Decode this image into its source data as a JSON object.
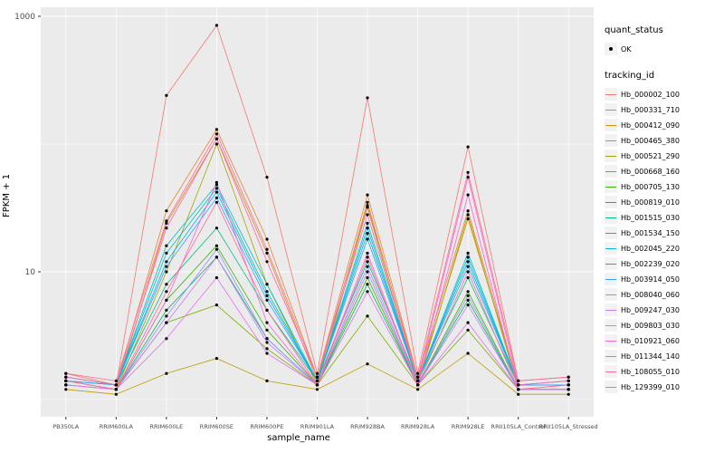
{
  "chart_data": {
    "type": "line",
    "title": "",
    "xlabel": "sample_name",
    "ylabel": "FPKM + 1",
    "y_scale": "log10",
    "ylim": [
      1,
      1000
    ],
    "y_ticks": [
      10,
      1000
    ],
    "y_minor_ticks": [
      1,
      100
    ],
    "grid": true,
    "panel_bg": "#EBEBEB",
    "grid_color": "#FFFFFF",
    "point_color": "#000000",
    "legend_position": "right",
    "categories": [
      "PB350LA",
      "RRIM600LA",
      "RRIM600LE",
      "RRIM600SE",
      "RRIM600PE",
      "RRIM901LA",
      "RRIM928BA",
      "RRIM928LA",
      "RRIM928LE",
      "RRII105LA_Control",
      "RRII105LA_Stressed"
    ],
    "series": [
      {
        "name": "Hb_000002_100",
        "color": "#F8766D",
        "values": [
          1.6,
          1.3,
          240,
          850,
          55,
          1.6,
          230,
          1.6,
          95,
          1.4,
          1.5
        ]
      },
      {
        "name": "Hb_000331_710",
        "color": "#EA8331",
        "values": [
          1.5,
          1.3,
          30,
          130,
          18,
          1.5,
          40,
          1.5,
          30,
          1.3,
          1.4
        ]
      },
      {
        "name": "Hb_000412_090",
        "color": "#D89000",
        "values": [
          1.4,
          1.2,
          24,
          110,
          14,
          1.4,
          35,
          1.4,
          26,
          1.3,
          1.3
        ]
      },
      {
        "name": "Hb_000465_380",
        "color": "#C09B00",
        "values": [
          1.2,
          1.1,
          1.6,
          2.1,
          1.4,
          1.2,
          1.9,
          1.2,
          2.3,
          1.1,
          1.1
        ]
      },
      {
        "name": "Hb_000521_290",
        "color": "#A3A500",
        "values": [
          1.3,
          1.2,
          10,
          100,
          8,
          1.3,
          32,
          1.3,
          28,
          1.2,
          1.2
        ]
      },
      {
        "name": "Hb_000668_160",
        "color": "#7CAE00",
        "values": [
          1.3,
          1.2,
          4,
          5.5,
          2.5,
          1.3,
          4.5,
          1.3,
          3.5,
          1.2,
          1.2
        ]
      },
      {
        "name": "Hb_000705_130",
        "color": "#39B600",
        "values": [
          1.4,
          1.2,
          6,
          16,
          3.5,
          1.3,
          9,
          1.3,
          7,
          1.2,
          1.2
        ]
      },
      {
        "name": "Hb_000819_010",
        "color": "#00BB4E",
        "values": [
          1.3,
          1.2,
          5,
          13,
          3,
          1.3,
          8,
          1.3,
          6,
          1.2,
          1.2
        ]
      },
      {
        "name": "Hb_001515_030",
        "color": "#00C087",
        "values": [
          1.4,
          1.3,
          8,
          22,
          5,
          1.4,
          12,
          1.4,
          9,
          1.3,
          1.3
        ]
      },
      {
        "name": "Hb_001534_150",
        "color": "#00C0B2",
        "values": [
          1.4,
          1.3,
          14,
          45,
          7,
          1.4,
          22,
          1.4,
          13,
          1.3,
          1.3
        ]
      },
      {
        "name": "Hb_002045_220",
        "color": "#00BCD8",
        "values": [
          1.5,
          1.3,
          16,
          48,
          8,
          1.4,
          24,
          1.4,
          14,
          1.3,
          1.4
        ]
      },
      {
        "name": "Hb_002239_020",
        "color": "#00B0F6",
        "values": [
          1.4,
          1.3,
          12,
          42,
          6.5,
          1.4,
          20,
          1.4,
          12,
          1.3,
          1.3
        ]
      },
      {
        "name": "Hb_003914_050",
        "color": "#35A2FF",
        "values": [
          1.4,
          1.3,
          11,
          38,
          6,
          1.4,
          18,
          1.4,
          11,
          1.3,
          1.3
        ]
      },
      {
        "name": "Hb_008040_060",
        "color": "#9590FF",
        "values": [
          1.3,
          1.2,
          4.5,
          15,
          3,
          1.3,
          11,
          1.3,
          6.5,
          1.2,
          1.2
        ]
      },
      {
        "name": "Hb_009247_030",
        "color": "#C77CFF",
        "values": [
          1.3,
          1.2,
          4,
          13,
          2.8,
          1.3,
          10,
          1.3,
          5.5,
          1.2,
          1.2
        ]
      },
      {
        "name": "Hb_009803_030",
        "color": "#E76BF3",
        "values": [
          1.3,
          1.2,
          3,
          9,
          2.3,
          1.3,
          7,
          1.3,
          4,
          1.2,
          1.2
        ]
      },
      {
        "name": "Hb_010921_060",
        "color": "#FA62DB",
        "values": [
          1.4,
          1.2,
          6,
          50,
          4,
          1.3,
          14,
          1.3,
          40,
          1.2,
          1.3
        ]
      },
      {
        "name": "Hb_011344_140",
        "color": "#FF62BC",
        "values": [
          1.5,
          1.3,
          22,
          110,
          12,
          1.5,
          28,
          1.4,
          55,
          1.3,
          1.4
        ]
      },
      {
        "name": "Hb_108055_010",
        "color": "#FF6A98",
        "values": [
          1.6,
          1.4,
          25,
          120,
          15,
          1.5,
          33,
          1.5,
          60,
          1.4,
          1.5
        ]
      },
      {
        "name": "Hb_129399_010",
        "color": "#FF6C90",
        "values": [
          1.4,
          1.2,
          7,
          35,
          5,
          1.3,
          13,
          1.3,
          10,
          1.2,
          1.3
        ]
      }
    ]
  },
  "legend": {
    "quant_status_title": "quant_status",
    "quant_status_items": [
      {
        "label": "OK",
        "symbol": "point"
      }
    ],
    "tracking_id_title": "tracking_id"
  }
}
